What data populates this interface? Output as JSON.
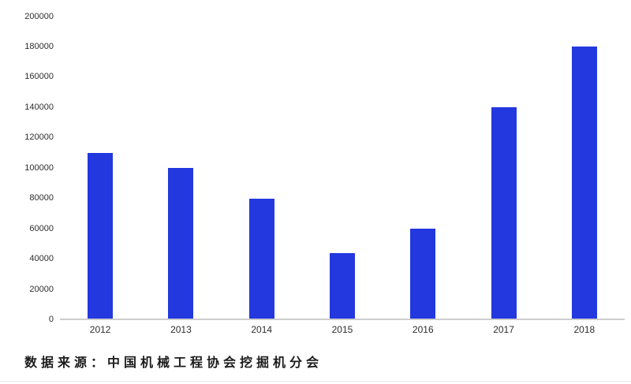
{
  "chart_data": {
    "type": "bar",
    "title": "",
    "xlabel": "",
    "ylabel": "",
    "categories": [
      "2012",
      "2013",
      "2014",
      "2015",
      "2016",
      "2017",
      "2018"
    ],
    "values": [
      110000,
      100000,
      80000,
      44000,
      60000,
      140000,
      180000
    ],
    "ylim": [
      0,
      200000
    ],
    "yticks": [
      0,
      20000,
      40000,
      60000,
      80000,
      100000,
      120000,
      140000,
      160000,
      180000,
      200000
    ],
    "grid": false,
    "legend": "none",
    "bar_color": "#2338df",
    "axis_line_color": "#cdcdcd",
    "tick_label_color": "#2e2e2e"
  },
  "source_note": {
    "text": "数据来源：中国机械工程协会挖掘机分会"
  }
}
